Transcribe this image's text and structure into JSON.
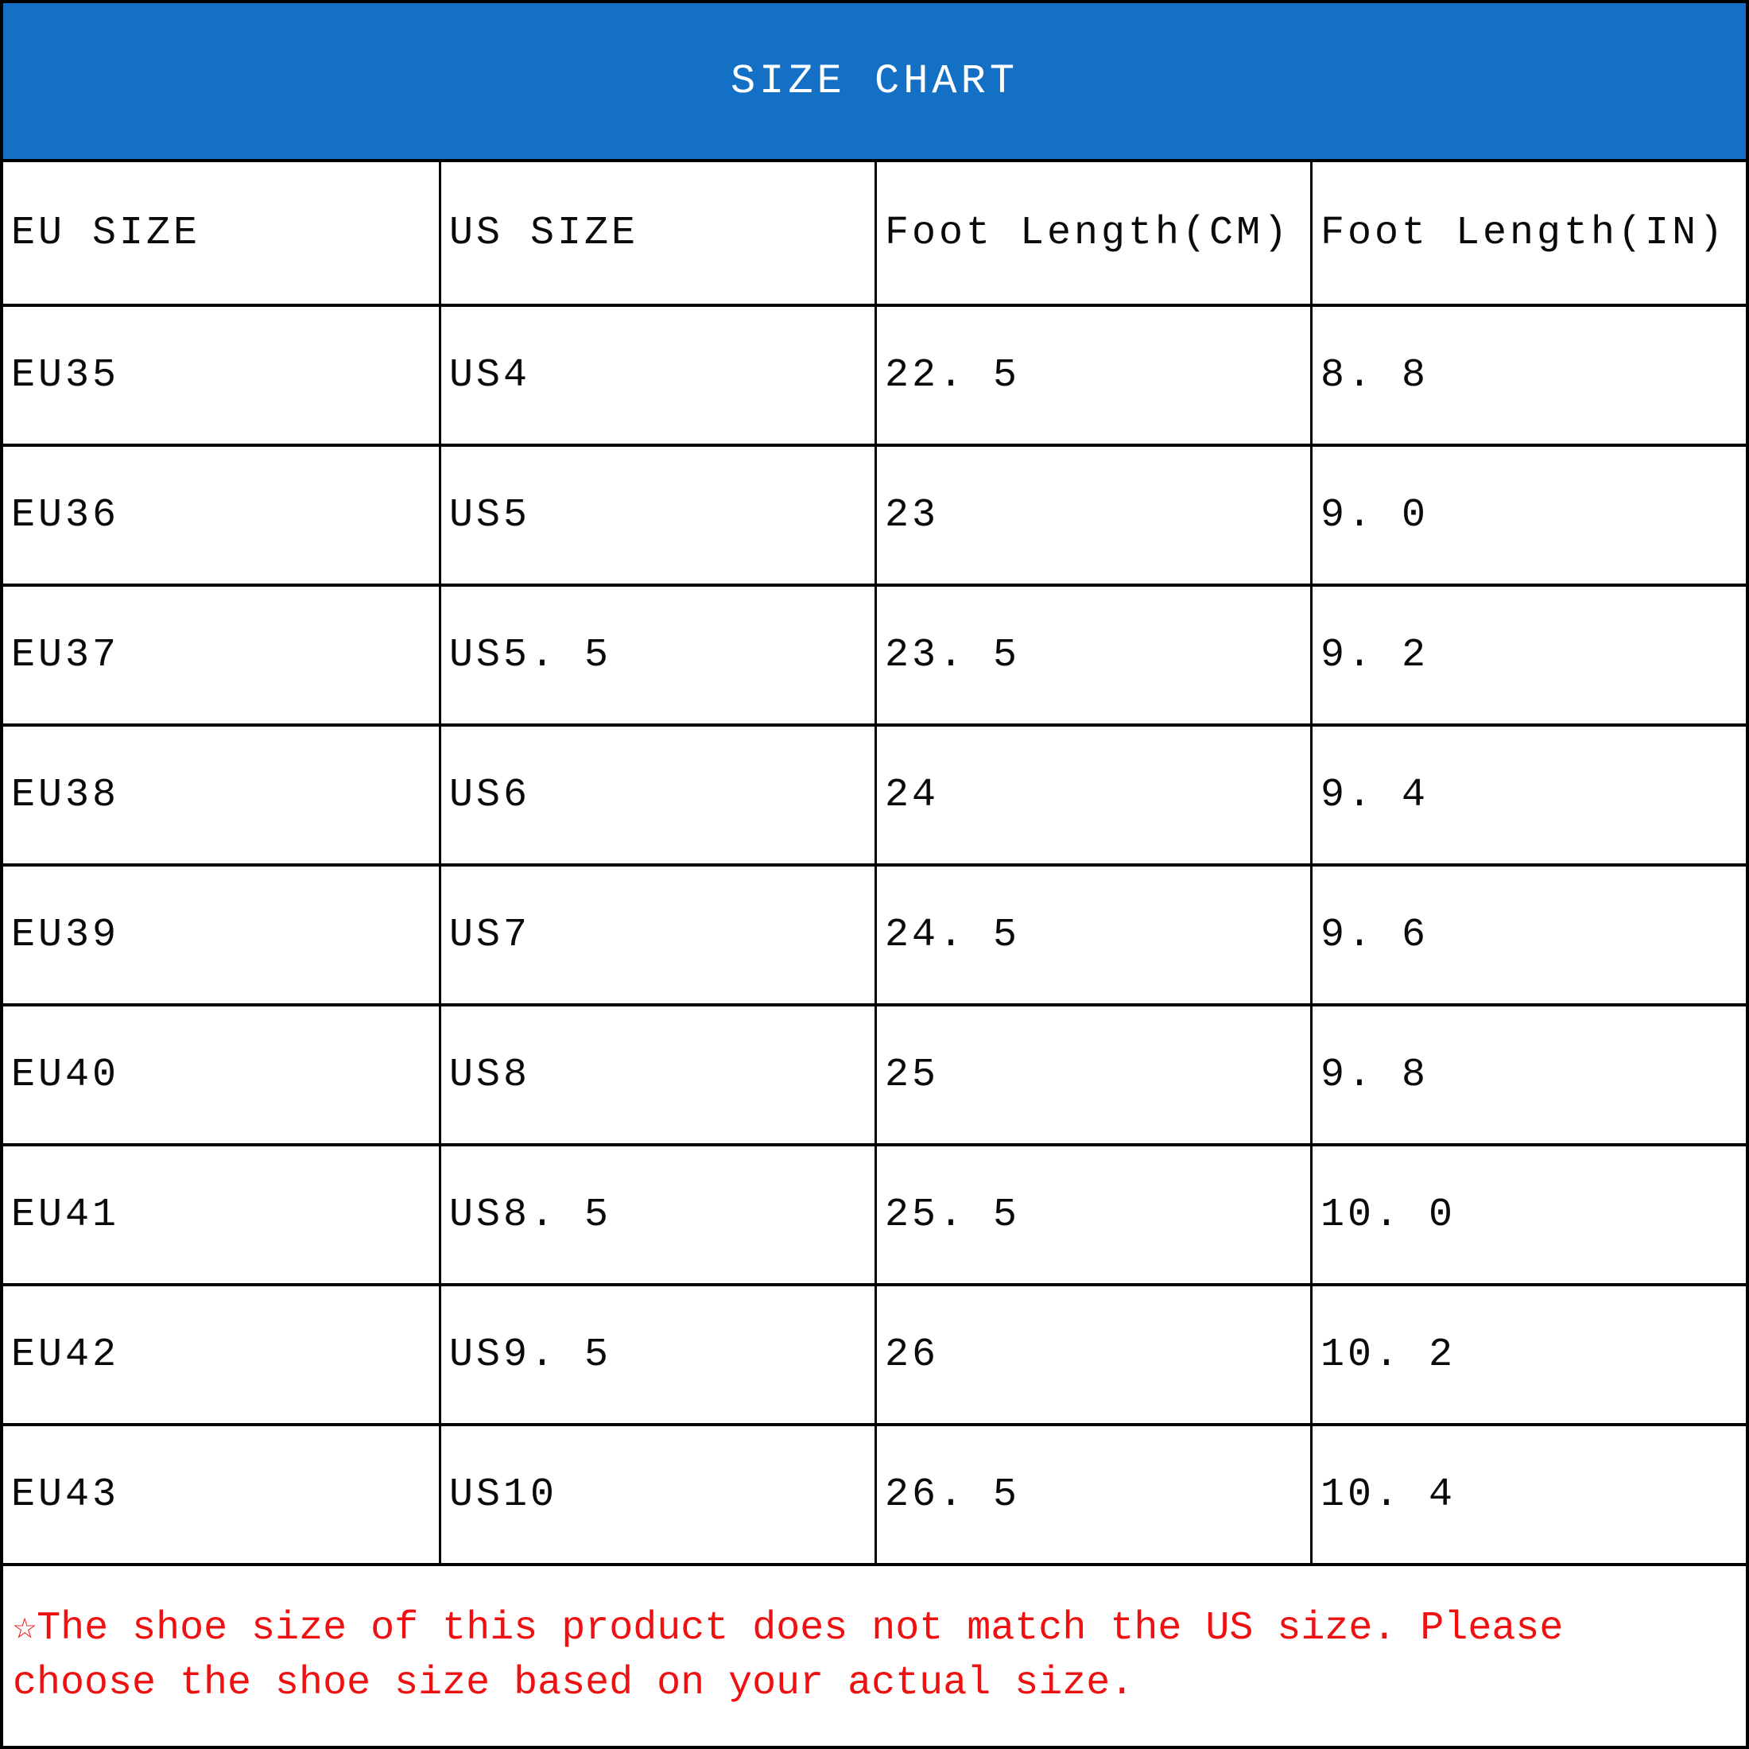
{
  "chart_data": {
    "type": "table",
    "title": "SIZE CHART",
    "columns": [
      "EU SIZE",
      "US SIZE",
      "Foot Length(CM)",
      "Foot Length(IN)"
    ],
    "rows": [
      [
        "EU35",
        "US4",
        "22. 5",
        "8. 8"
      ],
      [
        "EU36",
        "US5",
        "23",
        "9. 0"
      ],
      [
        "EU37",
        "US5. 5",
        "23. 5",
        "9. 2"
      ],
      [
        "EU38",
        "US6",
        "24",
        "9. 4"
      ],
      [
        "EU39",
        "US7",
        "24. 5",
        "9. 6"
      ],
      [
        "EU40",
        "US8",
        "25",
        "9. 8"
      ],
      [
        "EU41",
        "US8. 5",
        "25. 5",
        "10. 0"
      ],
      [
        "EU42",
        "US9. 5",
        "26",
        "10. 2"
      ],
      [
        "EU43",
        "US10",
        "26. 5",
        "10. 4"
      ]
    ]
  },
  "note": {
    "line1": "☆The shoe size of this product does not match the US size. Please",
    "line2": "choose the shoe size based on your actual size."
  },
  "colors": {
    "banner_background": "#1470C4",
    "banner_text": "#FFFFFF",
    "cell_text": "#0A0A0A",
    "note_text": "#EE1111",
    "border": "#000000"
  }
}
